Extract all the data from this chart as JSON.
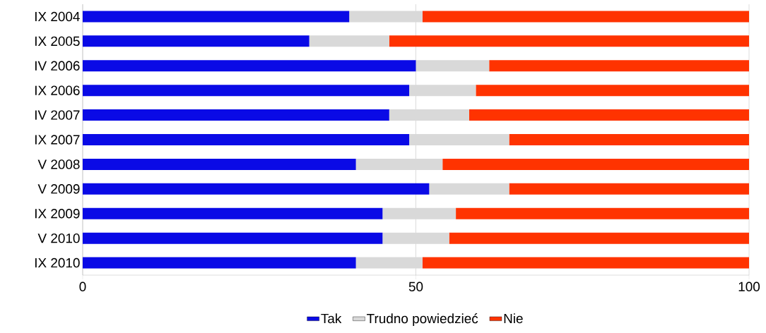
{
  "chart_data": {
    "type": "bar",
    "orientation": "horizontal",
    "stacked": true,
    "categories": [
      "IX 2004",
      "IX 2005",
      "IV 2006",
      "IX 2006",
      "IV 2007",
      "IX 2007",
      "V 2008",
      "V 2009",
      "IX 2009",
      "V 2010",
      "IX 2010"
    ],
    "series": [
      {
        "name": "Tak",
        "color": "#0a0ae6",
        "values": [
          40,
          34,
          50,
          49,
          46,
          49,
          41,
          52,
          45,
          45,
          41
        ]
      },
      {
        "name": "Trudno powiedzieć",
        "color": "#d9d9d9",
        "values": [
          11,
          12,
          11,
          10,
          12,
          15,
          13,
          12,
          11,
          10,
          10
        ]
      },
      {
        "name": "Nie",
        "color": "#ff3300",
        "values": [
          49,
          54,
          39,
          41,
          42,
          36,
          46,
          36,
          44,
          45,
          49
        ]
      }
    ],
    "xlim": [
      0,
      100
    ],
    "xticks": [
      0,
      50,
      100
    ],
    "grid": "x",
    "legend": "bottom"
  }
}
